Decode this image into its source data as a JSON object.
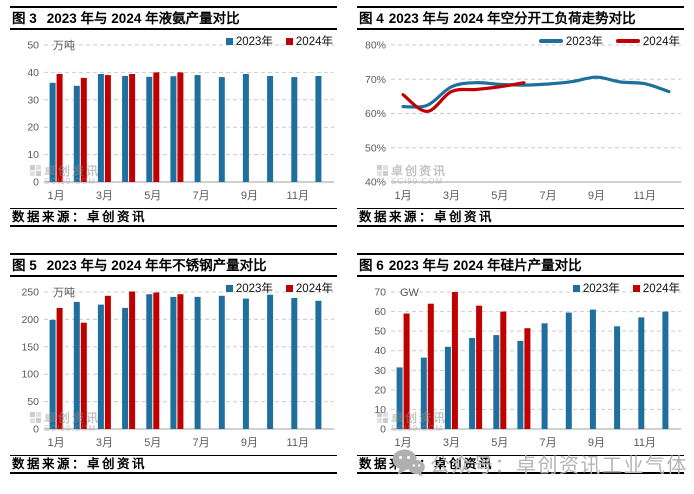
{
  "colors": {
    "blue": "#1F6F9E",
    "red": "#C00000",
    "grid": "#CBCBCB",
    "axis": "#B3B3B3",
    "tick_text": "#595959",
    "watermark_gray": "#B5B5B5"
  },
  "icons": {
    "wechat": "wechat-icon",
    "sci99_logo": "grid-logo-icon"
  },
  "watermark": {
    "small_line1": "卓创资讯",
    "small_line2": "SCI99.COM",
    "big_text": "公众号：卓创资讯工业气体"
  },
  "chart_data": [
    {
      "fig_label": "图 3",
      "title": "2023 年与 2024 年液氨产量对比",
      "type": "bar",
      "unit": "万吨",
      "categories": [
        "1月",
        "2月",
        "3月",
        "4月",
        "5月",
        "6月",
        "7月",
        "8月",
        "9月",
        "10月",
        "11月",
        "12月"
      ],
      "x_tick_labels": [
        "1月",
        "3月",
        "5月",
        "7月",
        "9月",
        "11月"
      ],
      "ylim": [
        0,
        50
      ],
      "yticks": [
        0,
        10,
        20,
        30,
        40,
        50
      ],
      "ytick_suffix": "",
      "legend_position": "top-right",
      "grid": true,
      "series": [
        {
          "name": "2023年",
          "color_key": "blue",
          "values": [
            36.2,
            35.1,
            39.4,
            38.7,
            38.4,
            38.6,
            39.0,
            38.3,
            39.4,
            38.7,
            38.3,
            38.7
          ]
        },
        {
          "name": "2024年",
          "color_key": "red",
          "values": [
            39.4,
            38.0,
            39.0,
            39.4,
            40.0,
            40.0
          ]
        }
      ],
      "source": "数据来源：卓创资讯"
    },
    {
      "fig_label": "图 4",
      "title": "2023 年与 2024 年空分开工负荷走势对比",
      "type": "line",
      "unit": "",
      "categories": [
        "1月",
        "2月",
        "3月",
        "4月",
        "5月",
        "6月",
        "7月",
        "8月",
        "9月",
        "10月",
        "11月",
        "12月"
      ],
      "x_tick_labels": [
        "1月",
        "3月",
        "5月",
        "7月",
        "9月",
        "11月"
      ],
      "ylim": [
        40,
        80
      ],
      "yticks": [
        40,
        50,
        60,
        70,
        80
      ],
      "ytick_suffix": "%",
      "legend_position": "top-right",
      "grid": true,
      "series": [
        {
          "name": "2023年",
          "color_key": "blue",
          "values": [
            62.0,
            62.4,
            67.8,
            69.0,
            68.5,
            68.3,
            68.6,
            69.3,
            70.6,
            69.2,
            68.7,
            66.4
          ]
        },
        {
          "name": "2024年",
          "color_key": "red",
          "values": [
            65.5,
            60.6,
            66.4,
            67.0,
            67.8,
            69.0
          ]
        }
      ],
      "source": "数据来源：卓创资讯"
    },
    {
      "fig_label": "图 5",
      "title": "2023 年与 2024 年年不锈钢产量对比",
      "type": "bar",
      "unit": "万吨",
      "categories": [
        "1月",
        "2月",
        "3月",
        "4月",
        "5月",
        "6月",
        "7月",
        "8月",
        "9月",
        "10月",
        "11月",
        "12月"
      ],
      "x_tick_labels": [
        "1月",
        "3月",
        "5月",
        "7月",
        "9月",
        "11月"
      ],
      "ylim": [
        0,
        250
      ],
      "yticks": [
        0,
        50,
        100,
        150,
        200,
        250
      ],
      "ytick_suffix": "",
      "legend_position": "top-right",
      "grid": true,
      "series": [
        {
          "name": "2023年",
          "color_key": "blue",
          "values": [
            199,
            232,
            227,
            221,
            246,
            241,
            241,
            243,
            238,
            245,
            239,
            234
          ]
        },
        {
          "name": "2024年",
          "color_key": "red",
          "values": [
            221,
            194,
            243,
            251,
            249,
            246
          ]
        }
      ],
      "source": "数据来源：卓创资讯"
    },
    {
      "fig_label": "图 6",
      "title": "2023 年与 2024 年硅片产量对比",
      "type": "bar",
      "unit": "GW",
      "categories": [
        "1月",
        "2月",
        "3月",
        "4月",
        "5月",
        "6月",
        "7月",
        "8月",
        "9月",
        "10月",
        "11月",
        "12月"
      ],
      "x_tick_labels": [
        "1月",
        "3月",
        "5月",
        "7月",
        "9月",
        "11月"
      ],
      "ylim": [
        0,
        70
      ],
      "yticks": [
        0,
        10,
        20,
        30,
        40,
        50,
        60,
        70
      ],
      "ytick_suffix": "",
      "legend_position": "top-right",
      "grid": true,
      "series": [
        {
          "name": "2023年",
          "color_key": "blue",
          "values": [
            31.5,
            36.5,
            42,
            46.5,
            48,
            45,
            54,
            59.5,
            61,
            52.5,
            57,
            60
          ]
        },
        {
          "name": "2024年",
          "color_key": "red",
          "values": [
            59,
            64,
            70,
            63,
            60,
            51.5
          ]
        }
      ],
      "source": "数据来源：卓创资讯"
    }
  ]
}
